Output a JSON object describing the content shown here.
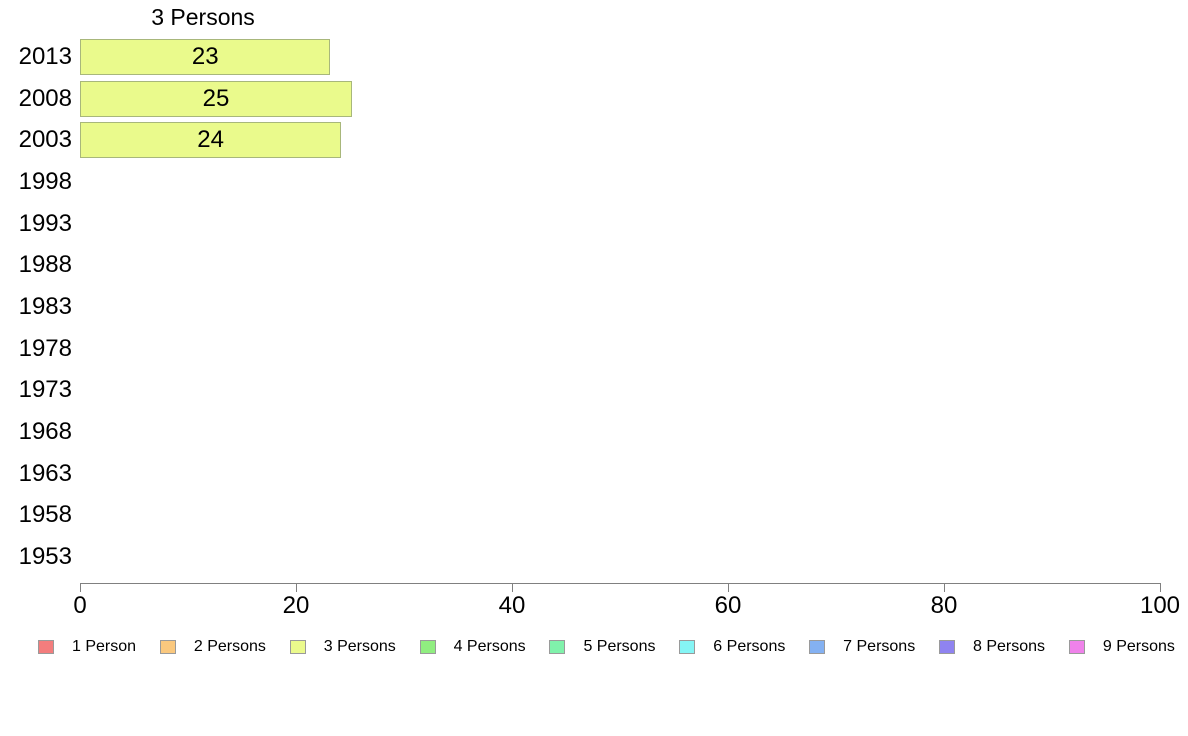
{
  "chart_data": {
    "type": "bar",
    "orientation": "horizontal",
    "title": "3 Persons",
    "categories": [
      "2013",
      "2008",
      "2003",
      "1998",
      "1993",
      "1988",
      "1983",
      "1978",
      "1973",
      "1968",
      "1963",
      "1958",
      "1953"
    ],
    "values": [
      23,
      25,
      24,
      null,
      null,
      null,
      null,
      null,
      null,
      null,
      null,
      null,
      null
    ],
    "value_labels": [
      "23",
      "25",
      "24",
      "",
      "",
      "",
      "",
      "",
      "",
      "",
      "",
      "",
      ""
    ],
    "xlim": [
      0,
      100
    ],
    "x_ticks": [
      0,
      20,
      40,
      60,
      80,
      100
    ],
    "grid": false,
    "bar_color": "#EAFA8C",
    "bar_border_color": "#A8B77B",
    "axis_color": "#808080",
    "legend_position": "bottom",
    "legend": [
      {
        "label": "1 Person",
        "color": "#F37D7D"
      },
      {
        "label": "2 Persons",
        "color": "#FAC87E"
      },
      {
        "label": "3 Persons",
        "color": "#EBFA8C"
      },
      {
        "label": "4 Persons",
        "color": "#90EE80"
      },
      {
        "label": "5 Persons",
        "color": "#80F2AB"
      },
      {
        "label": "6 Persons",
        "color": "#85F5F5"
      },
      {
        "label": "7 Persons",
        "color": "#84B1F2"
      },
      {
        "label": "8 Persons",
        "color": "#8F83F0"
      },
      {
        "label": "9 Persons",
        "color": "#EF82EA"
      }
    ]
  }
}
